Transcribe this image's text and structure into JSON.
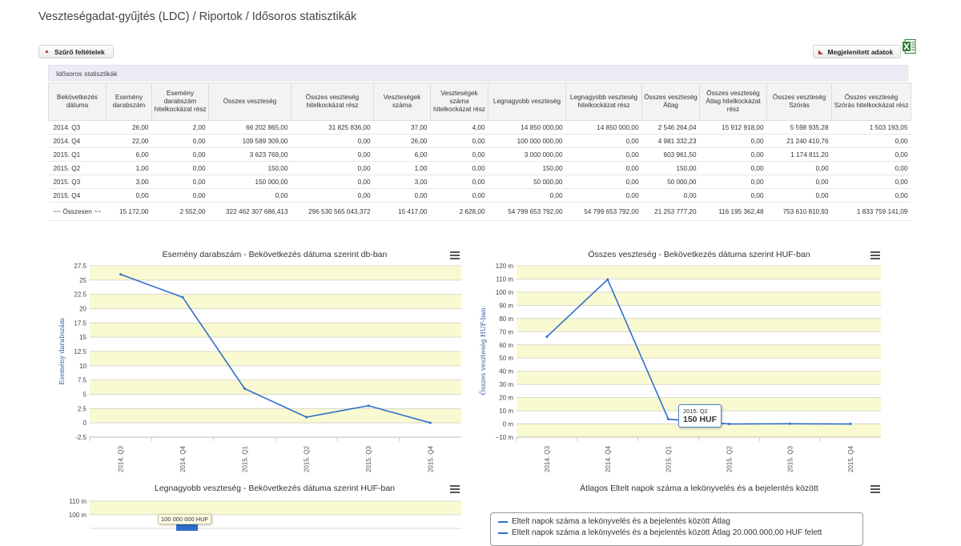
{
  "breadcrumb": "Veszteségadat-gyűjtés (LDC) / Riportok / Idősoros statisztikák",
  "buttons": {
    "filter": "Szűrő feltételek",
    "shown_data": "Megjelenített adatok"
  },
  "icons": {
    "excel": "excel-icon",
    "menu": "menu-icon",
    "button_marker": "triangle-icon"
  },
  "panel_title": "Idősoros statisztikák",
  "table": {
    "headers": [
      "Bekövetkezés dátuma",
      "Esemény darabszám",
      "Esemény darabszám hitelkockázat rész",
      "Összes veszteség",
      "Összes veszteség hitelkockázat rész",
      "Veszteségek száma",
      "Veszteségek száma hitelkockázat rész",
      "Legnagyobb veszteség",
      "Legnagyobb veszteség hitelkockázat rész",
      "Összes veszteség Átlag",
      "Összes veszteség Átlag hitelkockázat rész",
      "Összes veszteség Szórás",
      "Összes veszteség Szórás hitelkockázat rész"
    ],
    "rows": [
      [
        "2014. Q3",
        "26,00",
        "2,00",
        "66 202 865,00",
        "31 825 836,00",
        "37,00",
        "4,00",
        "14 850 000,00",
        "14 850 000,00",
        "2 546 264,04",
        "15 912 918,00",
        "5 598 935,28",
        "1 503 193,05"
      ],
      [
        "2014. Q4",
        "22,00",
        "0,00",
        "109 589 309,00",
        "0,00",
        "26,00",
        "0,00",
        "100 000 000,00",
        "0,00",
        "4 981 332,23",
        "0,00",
        "21 240 410,76",
        "0,00"
      ],
      [
        "2015. Q1",
        "6,00",
        "0,00",
        "3 623 769,00",
        "0,00",
        "6,00",
        "0,00",
        "3 000 000,00",
        "0,00",
        "603 961,50",
        "0,00",
        "1 174 811,20",
        "0,00"
      ],
      [
        "2015. Q2",
        "1,00",
        "0,00",
        "150,00",
        "0,00",
        "1,00",
        "0,00",
        "150,00",
        "0,00",
        "150,00",
        "0,00",
        "0,00",
        "0,00"
      ],
      [
        "2015. Q3",
        "3,00",
        "0,00",
        "150 000,00",
        "0,00",
        "3,00",
        "0,00",
        "50 000,00",
        "0,00",
        "50 000,00",
        "0,00",
        "0,00",
        "0,00"
      ],
      [
        "2015. Q4",
        "0,00",
        "0,00",
        "0,00",
        "0,00",
        "0,00",
        "0,00",
        "0,00",
        "0,00",
        "0,00",
        "0,00",
        "0,00",
        "0,00"
      ]
    ],
    "total_row": [
      "~~ Összesen ~~",
      "15 172,00",
      "2 552,00",
      "322 462 307 686,413",
      "296 530 565 043,372",
      "15 417,00",
      "2 628,00",
      "54 799 653 792,00",
      "54 799 653 792,00",
      "21 253 777,20",
      "116 195 362,48",
      "753 610 810,93",
      "1 833 759 141,09"
    ]
  },
  "chart_data": [
    {
      "type": "line",
      "title": "Esemény darabszám - Bekövetkezés dátuma szerint db-ban",
      "ylabel": "Esemény darabszám",
      "categories": [
        "2014. Q3",
        "2014. Q4",
        "2015. Q1",
        "2015. Q2",
        "2015. Q3",
        "2015. Q4"
      ],
      "values": [
        26,
        22,
        6,
        1,
        3,
        0
      ],
      "yticks": [
        "27.5",
        "25",
        "22.5",
        "20",
        "17.5",
        "15",
        "12.5",
        "10",
        "7.5",
        "5",
        "2.5",
        "0",
        "-2.5"
      ],
      "ylim": [
        -2.5,
        27.5
      ],
      "line_color": "#2f6fcc",
      "band_color": "#fafad2"
    },
    {
      "type": "line",
      "title": "Összes veszteség - Bekövetkezés dátuma szerint HUF-ban",
      "ylabel": "Összes veszteség HUF-ban",
      "categories": [
        "2014. Q3",
        "2014. Q4",
        "2015. Q1",
        "2015. Q2",
        "2015. Q3",
        "2015. Q4"
      ],
      "values": [
        66202865,
        109589309,
        3623769,
        150,
        150000,
        0
      ],
      "yticks": [
        "120 m",
        "110 m",
        "100 m",
        "90 m",
        "80 m",
        "70 m",
        "60 m",
        "50 m",
        "40 m",
        "30 m",
        "20 m",
        "10 m",
        "0 m",
        "−10 m"
      ],
      "ylim": [
        -10000000,
        120000000
      ],
      "tooltip": {
        "category": "2015. Q2",
        "value": "150 HUF"
      },
      "line_color": "#2f6fcc",
      "band_color": "#fafad2"
    },
    {
      "type": "bar",
      "title": "Legnagyobb veszteség - Bekövetkezés dátuma szerint HUF-ban",
      "yticks": [
        "110 m",
        "100 m"
      ],
      "tooltip": {
        "value": "100 000 000 HUF"
      },
      "bar_color": "#2f6fcc",
      "band_color": "#fafad2"
    },
    {
      "type": "line",
      "title": "Átlagos Eltelt napok száma a lekönyvelés és a bejelentés között",
      "legend": [
        "Eltelt napok száma a lekönyvelés és a bejelentés között Átlag",
        "Eltelt napok száma a lekönyvelés és a bejelentés között Átlag 20.000.000,00 HUF felett"
      ],
      "line_color": "#2f6fcc"
    }
  ]
}
